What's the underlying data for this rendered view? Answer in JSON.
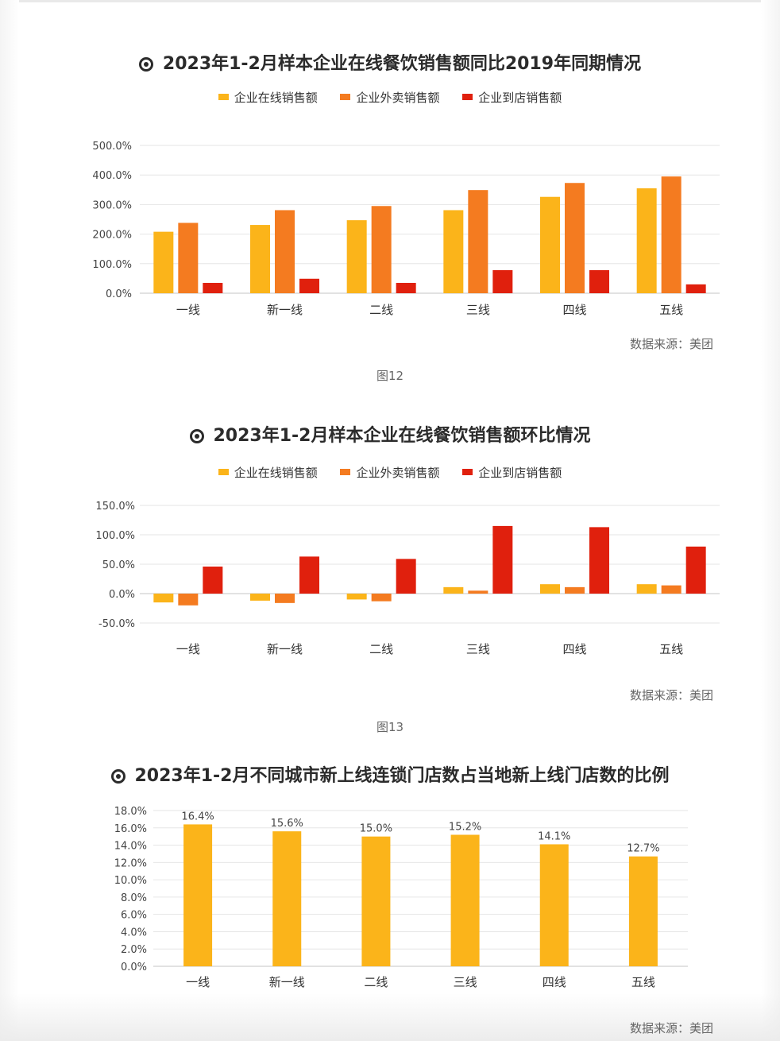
{
  "colors": {
    "online": "#FBB41A",
    "delivery": "#F47B20",
    "instore": "#E0200D",
    "grid": "#e6e6e6",
    "axis": "#d0d0d0"
  },
  "source_label": "数据来源：美团",
  "chart_data": [
    {
      "type": "bar",
      "title": "2023年1-2月样本企业在线餐饮销售额同比2019年同期情况",
      "categories": [
        "一线",
        "新一线",
        "二线",
        "三线",
        "四线",
        "五线"
      ],
      "series": [
        {
          "name": "企业在线销售额",
          "values": [
            208,
            231,
            247,
            281,
            326,
            355
          ]
        },
        {
          "name": "企业外卖销售额",
          "values": [
            238,
            281,
            295,
            349,
            373,
            395
          ]
        },
        {
          "name": "企业到店销售额",
          "values": [
            35,
            49,
            35,
            78,
            78,
            30
          ]
        }
      ],
      "ylim": [
        0,
        500
      ],
      "yticks": [
        "500.0%",
        "400.0%",
        "300.0%",
        "200.0%",
        "100.0%",
        "0.0%"
      ],
      "legend_position": "top",
      "grid": true
    },
    {
      "type": "bar",
      "title": "2023年1-2月样本企业在线餐饮销售额环比情况",
      "categories": [
        "一线",
        "新一线",
        "二线",
        "三线",
        "四线",
        "五线"
      ],
      "series": [
        {
          "name": "企业在线销售额",
          "values": [
            -15,
            -12,
            -10,
            11,
            16,
            16
          ]
        },
        {
          "name": "企业外卖销售额",
          "values": [
            -20,
            -16,
            -13,
            5,
            11,
            14
          ]
        },
        {
          "name": "企业到店销售额",
          "values": [
            46,
            63,
            59,
            115,
            113,
            80
          ]
        }
      ],
      "ylim": [
        -50,
        150
      ],
      "yticks": [
        "150.0%",
        "100.0%",
        "50.0%",
        "0.0%",
        "-50.0%"
      ],
      "legend_position": "top",
      "grid": true
    },
    {
      "type": "bar",
      "title": "2023年1-2月不同城市新上线连锁门店数占当地新上线门店数的比例",
      "categories": [
        "一线",
        "新一线",
        "二线",
        "三线",
        "四线",
        "五线"
      ],
      "series": [
        {
          "values": [
            16.4,
            15.6,
            15.0,
            15.2,
            14.1,
            12.7
          ]
        }
      ],
      "data_labels": [
        "16.4%",
        "15.6%",
        "15.0%",
        "15.2%",
        "14.1%",
        "12.7%"
      ],
      "ylim": [
        0,
        18
      ],
      "yticks": [
        "18.0%",
        "16.0%",
        "14.0%",
        "12.0%",
        "10.0%",
        "8.0%",
        "6.0%",
        "4.0%",
        "2.0%",
        "0.0%"
      ],
      "grid": true
    }
  ],
  "figures": {
    "fig12_caption": "图12",
    "fig13_caption": "图13"
  }
}
